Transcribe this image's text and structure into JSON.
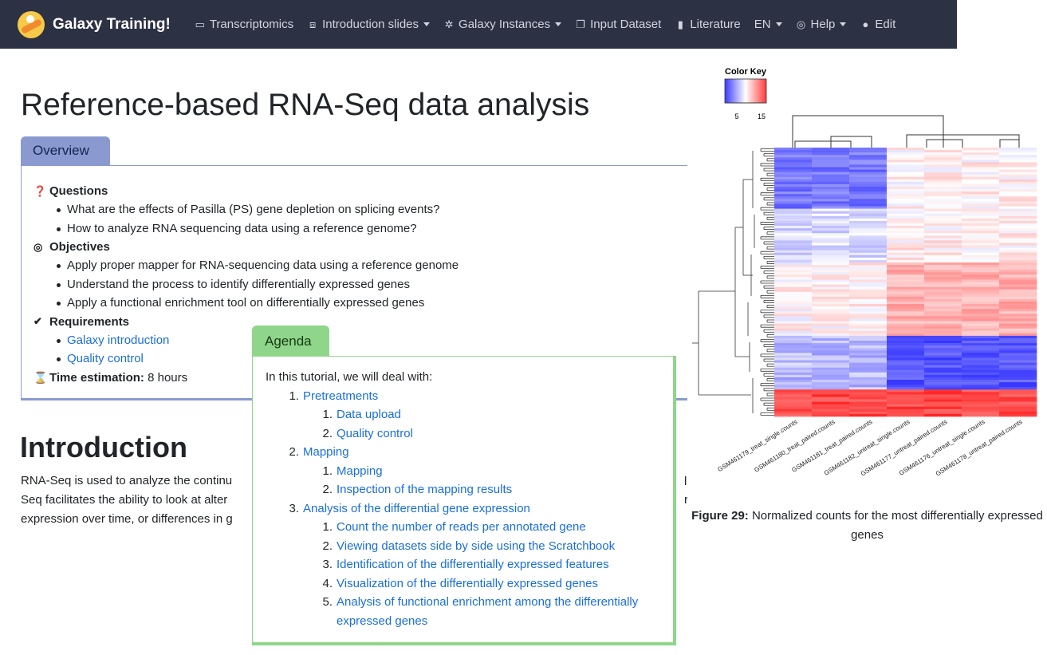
{
  "navbar": {
    "brand": "Galaxy Training!",
    "items": [
      {
        "label": "Transcriptomics",
        "icon": "folder-icon",
        "dropdown": false
      },
      {
        "label": "Introduction slides",
        "icon": "slides-icon",
        "dropdown": true
      },
      {
        "label": "Galaxy Instances",
        "icon": "gear-icon",
        "dropdown": true
      },
      {
        "label": "Input Dataset",
        "icon": "copy-icon",
        "dropdown": false
      },
      {
        "label": "Literature",
        "icon": "bookmark-icon",
        "dropdown": false
      },
      {
        "label": "EN",
        "icon": "",
        "dropdown": true
      },
      {
        "label": "Help",
        "icon": "lifebuoy-icon",
        "dropdown": true
      },
      {
        "label": "Edit",
        "icon": "github-icon",
        "dropdown": false
      }
    ]
  },
  "page": {
    "title": "Reference-based RNA-Seq data analysis"
  },
  "overview": {
    "tab_label": "Overview",
    "questions_heading": "Questions",
    "questions": [
      "What are the effects of Pasilla (PS) gene depletion on splicing events?",
      "How to analyze RNA sequencing data using a reference genome?"
    ],
    "objectives_heading": "Objectives",
    "objectives": [
      "Apply proper mapper for RNA-sequencing data using a reference genome",
      "Understand the process to identify differentially expressed genes",
      "Apply a functional enrichment tool on differentially expressed genes"
    ],
    "requirements_heading": "Requirements",
    "requirements": [
      "Galaxy introduction",
      "Quality control"
    ],
    "time_label": "Time estimation:",
    "time_value": "8 hours"
  },
  "introduction": {
    "heading": "Introduction",
    "lines": [
      "RNA-Seq is used to analyze the continu",
      "Seq facilitates the ability to look at alter",
      "expression over time, or differences in g"
    ],
    "right_fragments": [
      "l",
      "r"
    ]
  },
  "agenda": {
    "tab_label": "Agenda",
    "intro": "In this tutorial, we will deal with:",
    "sections": [
      {
        "num": "1.",
        "label": "Pretreatments",
        "children": [
          {
            "num": "1.",
            "label": "Data upload"
          },
          {
            "num": "2.",
            "label": "Quality control"
          }
        ]
      },
      {
        "num": "2.",
        "label": "Mapping",
        "children": [
          {
            "num": "1.",
            "label": "Mapping"
          },
          {
            "num": "2.",
            "label": "Inspection of the mapping results"
          }
        ]
      },
      {
        "num": "3.",
        "label": "Analysis of the differential gene expression",
        "children": [
          {
            "num": "1.",
            "label": "Count the number of reads per annotated gene"
          },
          {
            "num": "2.",
            "label": "Viewing datasets side by side using the Scratchbook"
          },
          {
            "num": "3.",
            "label": "Identification of the differentially expressed features"
          },
          {
            "num": "4.",
            "label": "Visualization of the differentially expressed genes"
          },
          {
            "num": "5.",
            "label": "Analysis of functional enrichment among the differentially",
            "continuation": "expressed genes"
          }
        ]
      }
    ]
  },
  "figure": {
    "color_key_title": "Color Key",
    "color_key_ticks": [
      "5",
      "15"
    ],
    "color_key_colors": [
      "#3a3aff",
      "#ffffff",
      "#ff3a3a"
    ],
    "columns": [
      "GSM461179_treat_single.counts",
      "GSM461180_treat_paired.counts",
      "GSM461181_treat_paired.counts",
      "GSM461182_untreat_single.counts",
      "GSM461177_untreat_paired.counts",
      "GSM461176_untreat_single.counts",
      "GSM461178_untreat_paired.counts"
    ],
    "caption_label": "Figure 29:",
    "caption_text": "Normalized counts for the most differentially expressed genes"
  }
}
